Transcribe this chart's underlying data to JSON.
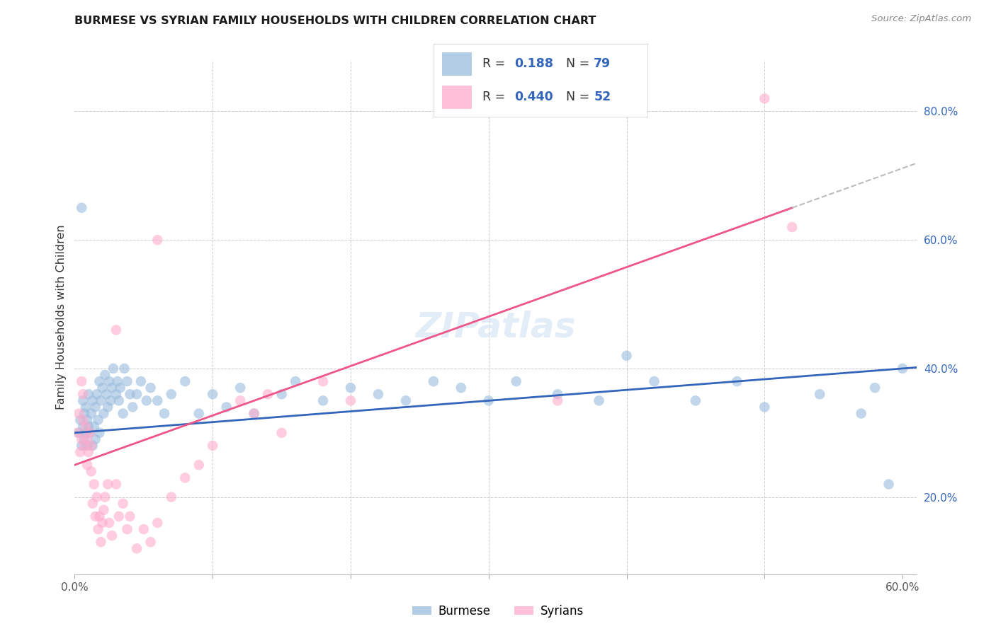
{
  "title": "BURMESE VS SYRIAN FAMILY HOUSEHOLDS WITH CHILDREN CORRELATION CHART",
  "source": "Source: ZipAtlas.com",
  "ylabel": "Family Households with Children",
  "xlim": [
    0.0,
    0.61
  ],
  "ylim": [
    0.08,
    0.88
  ],
  "xtick_vals": [
    0.0,
    0.1,
    0.2,
    0.3,
    0.4,
    0.5,
    0.6
  ],
  "xtick_labels": [
    "0.0%",
    "",
    "",
    "",
    "",
    "",
    "60.0%"
  ],
  "ytick_vals": [
    0.2,
    0.4,
    0.6,
    0.8
  ],
  "ytick_labels": [
    "20.0%",
    "40.0%",
    "60.0%",
    "80.0%"
  ],
  "burmese_color": "#99BBDD",
  "syrian_color": "#FFAACC",
  "burmese_line_color": "#3366BB",
  "syrian_line_color": "#EE5588",
  "dash_line_color": "#BBBBBB",
  "grid_color": "#CCCCCC",
  "bg_color": "#FFFFFF",
  "R_burmese": "0.188",
  "N_burmese": "79",
  "R_syrian": "0.440",
  "N_syrian": "52",
  "text_color_R": "#3366BB",
  "burmese_x": [
    0.003,
    0.004,
    0.005,
    0.006,
    0.006,
    0.007,
    0.007,
    0.008,
    0.008,
    0.009,
    0.009,
    0.01,
    0.01,
    0.011,
    0.012,
    0.013,
    0.013,
    0.014,
    0.015,
    0.015,
    0.016,
    0.017,
    0.018,
    0.018,
    0.019,
    0.02,
    0.021,
    0.022,
    0.023,
    0.024,
    0.025,
    0.026,
    0.027,
    0.028,
    0.03,
    0.031,
    0.032,
    0.033,
    0.035,
    0.036,
    0.038,
    0.04,
    0.042,
    0.045,
    0.048,
    0.052,
    0.055,
    0.06,
    0.065,
    0.07,
    0.08,
    0.09,
    0.1,
    0.11,
    0.12,
    0.13,
    0.15,
    0.16,
    0.18,
    0.2,
    0.22,
    0.24,
    0.26,
    0.28,
    0.3,
    0.32,
    0.35,
    0.38,
    0.4,
    0.42,
    0.45,
    0.48,
    0.5,
    0.54,
    0.57,
    0.58,
    0.59,
    0.6,
    0.005
  ],
  "burmese_y": [
    0.3,
    0.32,
    0.28,
    0.31,
    0.35,
    0.29,
    0.33,
    0.3,
    0.34,
    0.28,
    0.32,
    0.31,
    0.36,
    0.3,
    0.33,
    0.28,
    0.35,
    0.31,
    0.34,
    0.29,
    0.36,
    0.32,
    0.38,
    0.3,
    0.35,
    0.37,
    0.33,
    0.39,
    0.36,
    0.34,
    0.38,
    0.35,
    0.37,
    0.4,
    0.36,
    0.38,
    0.35,
    0.37,
    0.33,
    0.4,
    0.38,
    0.36,
    0.34,
    0.36,
    0.38,
    0.35,
    0.37,
    0.35,
    0.33,
    0.36,
    0.38,
    0.33,
    0.36,
    0.34,
    0.37,
    0.33,
    0.36,
    0.38,
    0.35,
    0.37,
    0.36,
    0.35,
    0.38,
    0.37,
    0.35,
    0.38,
    0.36,
    0.35,
    0.42,
    0.38,
    0.35,
    0.38,
    0.34,
    0.36,
    0.33,
    0.37,
    0.22,
    0.4,
    0.65
  ],
  "syrian_x": [
    0.002,
    0.003,
    0.004,
    0.005,
    0.005,
    0.006,
    0.006,
    0.007,
    0.008,
    0.009,
    0.009,
    0.01,
    0.011,
    0.012,
    0.012,
    0.013,
    0.014,
    0.015,
    0.016,
    0.017,
    0.018,
    0.019,
    0.02,
    0.021,
    0.022,
    0.024,
    0.025,
    0.027,
    0.03,
    0.032,
    0.035,
    0.038,
    0.04,
    0.045,
    0.05,
    0.055,
    0.06,
    0.07,
    0.08,
    0.09,
    0.1,
    0.12,
    0.13,
    0.14,
    0.15,
    0.18,
    0.2,
    0.35,
    0.5,
    0.52,
    0.03,
    0.06
  ],
  "syrian_y": [
    0.3,
    0.33,
    0.27,
    0.29,
    0.38,
    0.32,
    0.36,
    0.28,
    0.31,
    0.25,
    0.29,
    0.27,
    0.3,
    0.24,
    0.28,
    0.19,
    0.22,
    0.17,
    0.2,
    0.15,
    0.17,
    0.13,
    0.16,
    0.18,
    0.2,
    0.22,
    0.16,
    0.14,
    0.22,
    0.17,
    0.19,
    0.15,
    0.17,
    0.12,
    0.15,
    0.13,
    0.16,
    0.2,
    0.23,
    0.25,
    0.28,
    0.35,
    0.33,
    0.36,
    0.3,
    0.38,
    0.35,
    0.35,
    0.82,
    0.62,
    0.46,
    0.6
  ]
}
